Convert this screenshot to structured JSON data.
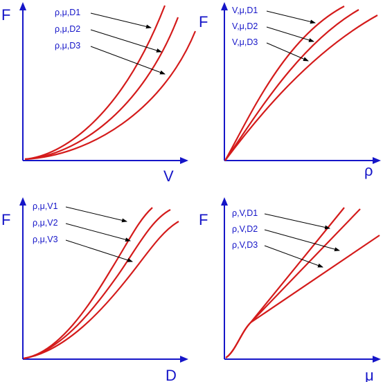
{
  "colors": {
    "axis": "#1515c8",
    "curve": "#d41b1b",
    "pointer": "#000000"
  },
  "panels": [
    {
      "y_axis": "F",
      "x_axis": "V",
      "labels": [
        "ρ,μ,D1",
        "ρ,μ,D2",
        "ρ,μ,D3"
      ]
    },
    {
      "y_axis": "F",
      "x_axis": "ρ",
      "labels": [
        "V,μ,D1",
        "V,μ,D2",
        "V,μ,D3"
      ]
    },
    {
      "y_axis": "F",
      "x_axis": "D",
      "labels": [
        "ρ,μ,V1",
        "ρ,μ,V2",
        "ρ,μ,V3"
      ]
    },
    {
      "y_axis": "F",
      "x_axis": "μ",
      "labels": [
        "ρ,V,D1",
        "ρ,V,D2",
        "ρ,V,D3"
      ]
    }
  ]
}
